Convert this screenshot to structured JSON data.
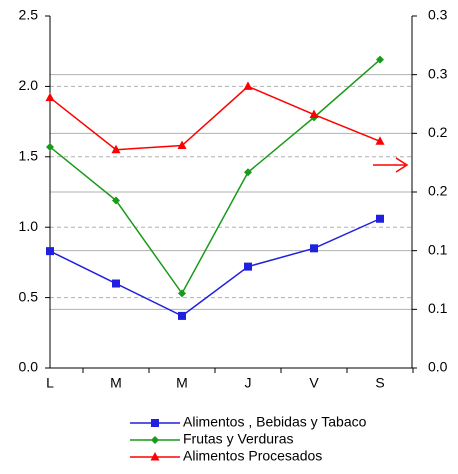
{
  "chart_data": {
    "type": "line",
    "categories": [
      "L",
      "M",
      "M",
      "J",
      "V",
      "S"
    ],
    "series": [
      {
        "name": "Alimentos , Bebidas y Tabaco",
        "color": "#2020e0",
        "marker": "square",
        "values": [
          0.83,
          0.6,
          0.37,
          0.72,
          0.85,
          1.06
        ]
      },
      {
        "name": "Frutas y Verduras",
        "color": "#1a9a1a",
        "marker": "diamond",
        "values": [
          1.57,
          1.19,
          0.53,
          1.39,
          1.78,
          2.19
        ]
      },
      {
        "name": "Alimentos Procesados",
        "color": "#ff0000",
        "marker": "triangle",
        "values": [
          1.92,
          1.55,
          1.58,
          2.0,
          1.8,
          1.61
        ]
      }
    ],
    "ylim": [
      0,
      2.5
    ],
    "yticks": [
      {
        "value": 0,
        "label": "0.0"
      },
      {
        "value": 0.5,
        "label": "0.5"
      },
      {
        "value": 1,
        "label": "1.0"
      },
      {
        "value": 1.5,
        "label": "1.5"
      },
      {
        "value": 2,
        "label": "2.0"
      },
      {
        "value": 2.5,
        "label": "2.5"
      }
    ],
    "y2lim": [
      0,
      0.3
    ],
    "y2ticks": [
      {
        "value": 0,
        "label": "0.0"
      },
      {
        "value": 0.05,
        "label": "0.1"
      },
      {
        "value": 0.1,
        "label": "0.1"
      },
      {
        "value": 0.15,
        "label": "0.2"
      },
      {
        "value": 0.2,
        "label": "0.2"
      },
      {
        "value": 0.25,
        "label": "0.3"
      },
      {
        "value": 0.3,
        "label": "0.3"
      }
    ],
    "grid": true
  }
}
